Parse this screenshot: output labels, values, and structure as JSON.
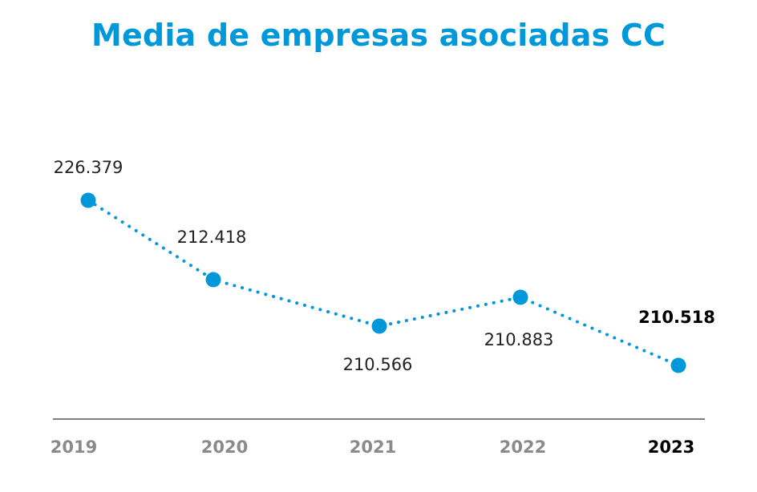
{
  "title": "Media de empresas asociadas CC",
  "colors": {
    "series": "#0098d9",
    "title": "#0098d9",
    "axis": "#333333",
    "tick": "#8a8a8a",
    "highlight": "#000000"
  },
  "chart_data": {
    "type": "line",
    "title": "Media de empresas asociadas CC",
    "categories": [
      "2019",
      "2020",
      "2021",
      "2022",
      "2023"
    ],
    "values": [
      226379,
      212418,
      210566,
      210883,
      210518
    ],
    "data_labels": [
      "226.379",
      "212.418",
      "210.566",
      "210.883",
      "210.518"
    ],
    "highlight_index": 4,
    "line_style": "dotted",
    "grid": false,
    "legend": "none"
  }
}
